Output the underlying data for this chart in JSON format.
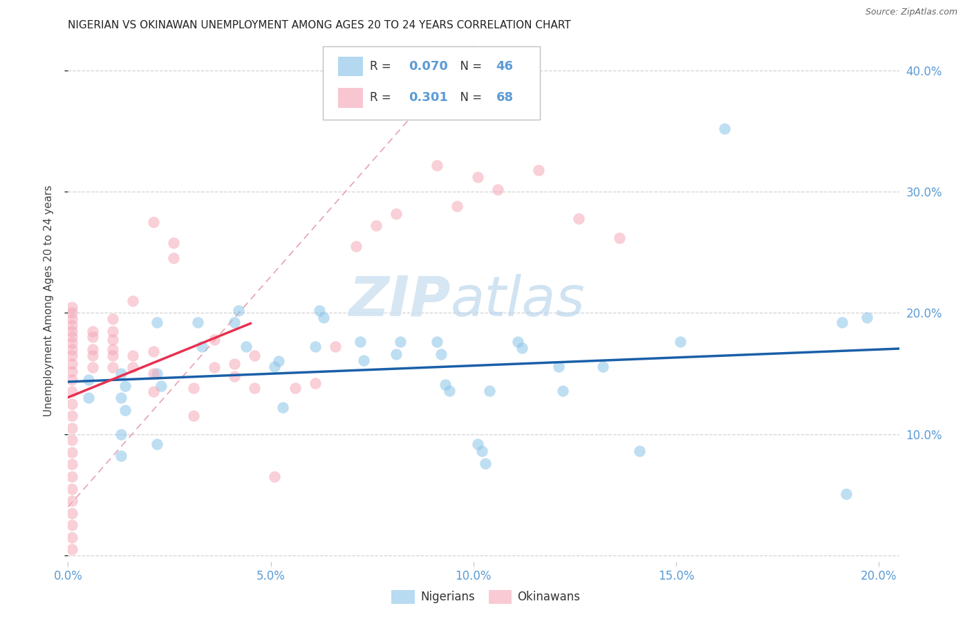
{
  "title": "NIGERIAN VS OKINAWAN UNEMPLOYMENT AMONG AGES 20 TO 24 YEARS CORRELATION CHART",
  "source": "Source: ZipAtlas.com",
  "ylabel": "Unemployment Among Ages 20 to 24 years",
  "xlim": [
    0.0,
    0.205
  ],
  "ylim": [
    -0.005,
    0.425
  ],
  "xticks": [
    0.0,
    0.05,
    0.1,
    0.15,
    0.2
  ],
  "yticks": [
    0.0,
    0.1,
    0.2,
    0.3,
    0.4
  ],
  "xtick_labels": [
    "0.0%",
    "5.0%",
    "10.0%",
    "15.0%",
    "20.0%"
  ],
  "ytick_labels_right": [
    "",
    "10.0%",
    "20.0%",
    "30.0%",
    "40.0%"
  ],
  "blue_scatter": "#8ac4e8",
  "pink_scatter": "#f5a8b8",
  "blue_line": "#1a5fa8",
  "pink_line": "#e83050",
  "diag_line": "#f5b8c8",
  "tick_color": "#5b9bd5",
  "grid_color": "#d3d3d3",
  "r_nig": "0.070",
  "n_nig": "46",
  "r_oki": "0.301",
  "n_oki": "68",
  "legend_text_color": "#5b9bd5",
  "nigerian_x": [
    0.005,
    0.005,
    0.013,
    0.014,
    0.013,
    0.014,
    0.013,
    0.013,
    0.022,
    0.022,
    0.023,
    0.022,
    0.032,
    0.033,
    0.042,
    0.041,
    0.044,
    0.052,
    0.051,
    0.053,
    0.062,
    0.063,
    0.061,
    0.072,
    0.073,
    0.082,
    0.081,
    0.091,
    0.092,
    0.093,
    0.094,
    0.101,
    0.102,
    0.103,
    0.104,
    0.111,
    0.112,
    0.121,
    0.122,
    0.132,
    0.141,
    0.151,
    0.162,
    0.191,
    0.192,
    0.197
  ],
  "nigerian_y": [
    0.13,
    0.145,
    0.15,
    0.14,
    0.13,
    0.12,
    0.1,
    0.082,
    0.192,
    0.15,
    0.14,
    0.092,
    0.192,
    0.172,
    0.202,
    0.192,
    0.172,
    0.16,
    0.156,
    0.122,
    0.202,
    0.196,
    0.172,
    0.176,
    0.161,
    0.176,
    0.166,
    0.176,
    0.166,
    0.141,
    0.136,
    0.092,
    0.086,
    0.076,
    0.136,
    0.176,
    0.171,
    0.156,
    0.136,
    0.156,
    0.086,
    0.176,
    0.352,
    0.192,
    0.051,
    0.196
  ],
  "okinawan_x": [
    0.001,
    0.001,
    0.001,
    0.001,
    0.001,
    0.001,
    0.001,
    0.001,
    0.001,
    0.001,
    0.001,
    0.001,
    0.001,
    0.001,
    0.001,
    0.001,
    0.001,
    0.001,
    0.001,
    0.001,
    0.001,
    0.001,
    0.001,
    0.001,
    0.001,
    0.001,
    0.006,
    0.006,
    0.006,
    0.006,
    0.006,
    0.011,
    0.011,
    0.011,
    0.011,
    0.011,
    0.011,
    0.016,
    0.016,
    0.016,
    0.021,
    0.021,
    0.021,
    0.021,
    0.026,
    0.026,
    0.031,
    0.031,
    0.036,
    0.036,
    0.041,
    0.041,
    0.046,
    0.046,
    0.051,
    0.056,
    0.061,
    0.066,
    0.071,
    0.076,
    0.081,
    0.091,
    0.096,
    0.101,
    0.106,
    0.116,
    0.126,
    0.136
  ],
  "okinawan_y": [
    0.005,
    0.015,
    0.025,
    0.035,
    0.045,
    0.055,
    0.065,
    0.075,
    0.085,
    0.095,
    0.105,
    0.115,
    0.125,
    0.135,
    0.145,
    0.152,
    0.158,
    0.165,
    0.17,
    0.175,
    0.18,
    0.185,
    0.19,
    0.195,
    0.2,
    0.205,
    0.155,
    0.165,
    0.17,
    0.18,
    0.185,
    0.155,
    0.165,
    0.17,
    0.178,
    0.185,
    0.195,
    0.155,
    0.165,
    0.21,
    0.135,
    0.15,
    0.168,
    0.275,
    0.245,
    0.258,
    0.115,
    0.138,
    0.155,
    0.178,
    0.148,
    0.158,
    0.138,
    0.165,
    0.065,
    0.138,
    0.142,
    0.172,
    0.255,
    0.272,
    0.282,
    0.322,
    0.288,
    0.312,
    0.302,
    0.318,
    0.278,
    0.262
  ]
}
